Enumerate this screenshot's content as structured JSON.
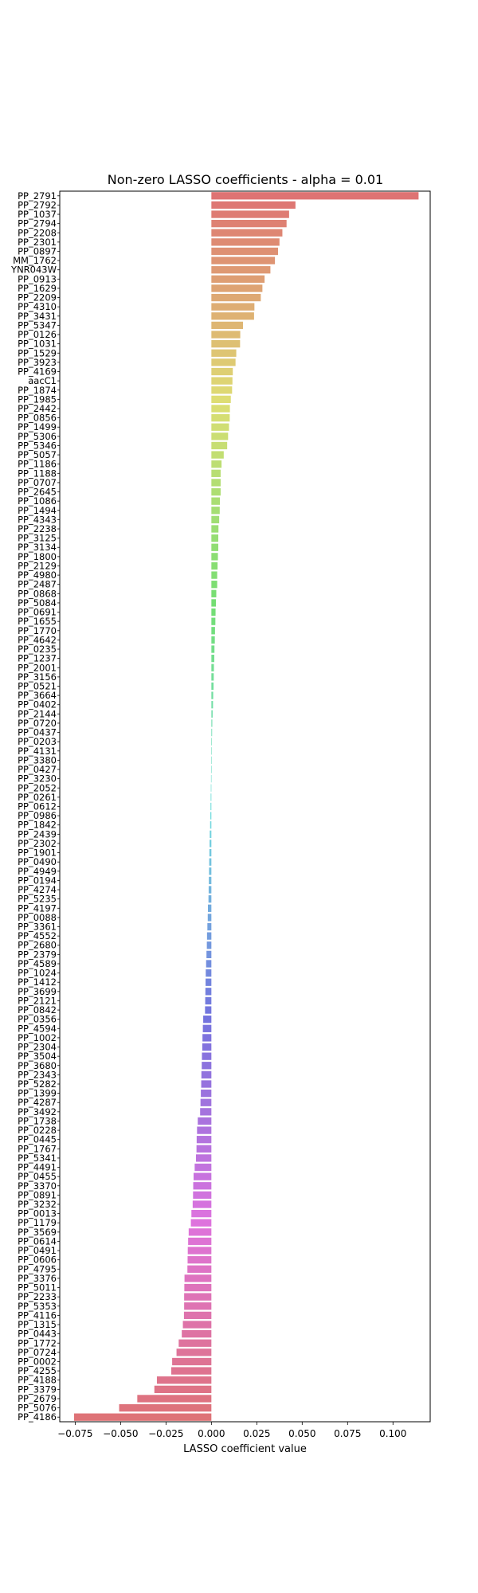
{
  "chart_data": {
    "type": "bar",
    "orientation": "horizontal",
    "title": "Non-zero LASSO coefficients - alpha = 0.01",
    "xlabel": "LASSO coefficient value",
    "ylabel": "",
    "xlim": [
      -0.0835,
      0.1205
    ],
    "xticks": [
      -0.075,
      -0.05,
      -0.025,
      0.0,
      0.025,
      0.05,
      0.075,
      0.1
    ],
    "xtick_labels": [
      "−0.075",
      "−0.050",
      "−0.025",
      "0.000",
      "0.025",
      "0.050",
      "0.075",
      "0.100"
    ],
    "grid": false,
    "legend": "none",
    "palette": "husl",
    "categories": [
      "PP_2791",
      "PP_2792",
      "PP_1037",
      "PP_2794",
      "PP_2208",
      "PP_2301",
      "PP_0897",
      "MM_1762",
      "YNR043W",
      "PP_0913",
      "PP_1629",
      "PP_2209",
      "PP_4310",
      "PP_3431",
      "PP_5347",
      "PP_0126",
      "PP_1031",
      "PP_1529",
      "PP_3923",
      "PP_4169",
      "aacC1",
      "PP_1874",
      "PP_1985",
      "PP_2442",
      "PP_0856",
      "PP_1499",
      "PP_5306",
      "PP_5346",
      "PP_5057",
      "PP_1186",
      "PP_1188",
      "PP_0707",
      "PP_2645",
      "PP_1086",
      "PP_1494",
      "PP_4343",
      "PP_2238",
      "PP_3125",
      "PP_3134",
      "PP_1800",
      "PP_2129",
      "PP_4980",
      "PP_2487",
      "PP_0868",
      "PP_5084",
      "PP_0691",
      "PP_1655",
      "PP_1770",
      "PP_4642",
      "PP_0235",
      "PP_1237",
      "PP_2001",
      "PP_3156",
      "PP_0521",
      "PP_3664",
      "PP_0402",
      "PP_2144",
      "PP_0720",
      "PP_0437",
      "PP_0203",
      "PP_4131",
      "PP_3380",
      "PP_0427",
      "PP_3230",
      "PP_2052",
      "PP_0261",
      "PP_0612",
      "PP_0986",
      "PP_1842",
      "PP_2439",
      "PP_2302",
      "PP_1901",
      "PP_0490",
      "PP_4949",
      "PP_0194",
      "PP_4274",
      "PP_5235",
      "PP_4197",
      "PP_0088",
      "PP_3361",
      "PP_4552",
      "PP_2680",
      "PP_2379",
      "PP_4589",
      "PP_1024",
      "PP_1412",
      "PP_3699",
      "PP_2121",
      "PP_0842",
      "PP_0356",
      "PP_4594",
      "PP_1002",
      "PP_2304",
      "PP_3504",
      "PP_3680",
      "PP_2343",
      "PP_5282",
      "PP_1399",
      "PP_4287",
      "PP_3492",
      "PP_1738",
      "PP_0228",
      "PP_0445",
      "PP_1767",
      "PP_5341",
      "PP_4491",
      "PP_0455",
      "PP_3370",
      "PP_0891",
      "PP_3232",
      "PP_0013",
      "PP_1179",
      "PP_3569",
      "PP_0614",
      "PP_0491",
      "PP_0606",
      "PP_4795",
      "PP_3376",
      "PP_5011",
      "PP_2233",
      "PP_5353",
      "PP_4116",
      "PP_1315",
      "PP_0443",
      "PP_1772",
      "PP_0724",
      "PP_0002",
      "PP_4255",
      "PP_4188",
      "PP_3379",
      "PP_2679",
      "PP_5076",
      "PP_4186"
    ],
    "values": [
      0.1141,
      0.0463,
      0.0428,
      0.0414,
      0.0391,
      0.0375,
      0.0367,
      0.035,
      0.0325,
      0.0293,
      0.0281,
      0.0272,
      0.0237,
      0.0235,
      0.0174,
      0.0159,
      0.0158,
      0.0137,
      0.0133,
      0.0118,
      0.0116,
      0.0114,
      0.0107,
      0.0102,
      0.0101,
      0.0097,
      0.0092,
      0.0087,
      0.0068,
      0.0056,
      0.0051,
      0.0051,
      0.0051,
      0.0047,
      0.0046,
      0.0043,
      0.0039,
      0.0038,
      0.0038,
      0.0036,
      0.0034,
      0.0032,
      0.0032,
      0.0027,
      0.0025,
      0.0023,
      0.0022,
      0.002,
      0.0019,
      0.0017,
      0.0016,
      0.0014,
      0.0013,
      0.0012,
      0.001,
      0.0009,
      0.0007,
      0.0005,
      0.0004,
      0.0003,
      0.0002,
      0.0001,
      0.0001,
      -0.0002,
      -0.0003,
      -0.0004,
      -0.0005,
      -0.0006,
      -0.0007,
      -0.0009,
      -0.001,
      -0.0011,
      -0.0012,
      -0.0013,
      -0.0014,
      -0.0015,
      -0.0016,
      -0.0019,
      -0.002,
      -0.0022,
      -0.0024,
      -0.0025,
      -0.0027,
      -0.0029,
      -0.0031,
      -0.0032,
      -0.0033,
      -0.0034,
      -0.0035,
      -0.0045,
      -0.0047,
      -0.0049,
      -0.005,
      -0.0052,
      -0.0053,
      -0.0055,
      -0.0056,
      -0.0058,
      -0.006,
      -0.0062,
      -0.0075,
      -0.0079,
      -0.0081,
      -0.0082,
      -0.0085,
      -0.0092,
      -0.0098,
      -0.01,
      -0.0101,
      -0.0103,
      -0.011,
      -0.0113,
      -0.0125,
      -0.0128,
      -0.013,
      -0.0131,
      -0.0132,
      -0.0148,
      -0.0149,
      -0.015,
      -0.015,
      -0.0151,
      -0.0157,
      -0.0163,
      -0.018,
      -0.0192,
      -0.0216,
      -0.0221,
      -0.03,
      -0.0314,
      -0.0408,
      -0.0508,
      -0.0756
    ]
  }
}
